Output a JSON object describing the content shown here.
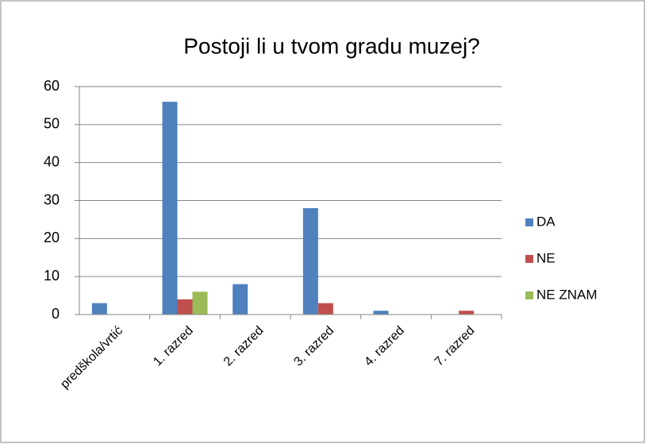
{
  "chart_data": {
    "type": "bar",
    "title": "Postoji li u tvom gradu muzej?",
    "categories": [
      "predškola/vrtić",
      "1. razred",
      "2. razred",
      "3. razred",
      "4. razred",
      "7. razred"
    ],
    "series": [
      {
        "name": "DA",
        "color": "#4f81bd",
        "values": [
          3,
          56,
          8,
          28,
          1,
          0
        ]
      },
      {
        "name": "NE",
        "color": "#c0504d",
        "values": [
          0,
          4,
          0,
          3,
          0,
          1
        ]
      },
      {
        "name": "NE ZNAM",
        "color": "#9bbb59",
        "values": [
          0,
          6,
          0,
          0,
          0,
          0
        ]
      }
    ],
    "ylim": [
      0,
      60
    ],
    "yticks": [
      0,
      10,
      20,
      30,
      40,
      50,
      60
    ],
    "grid": true,
    "legend": "right"
  }
}
